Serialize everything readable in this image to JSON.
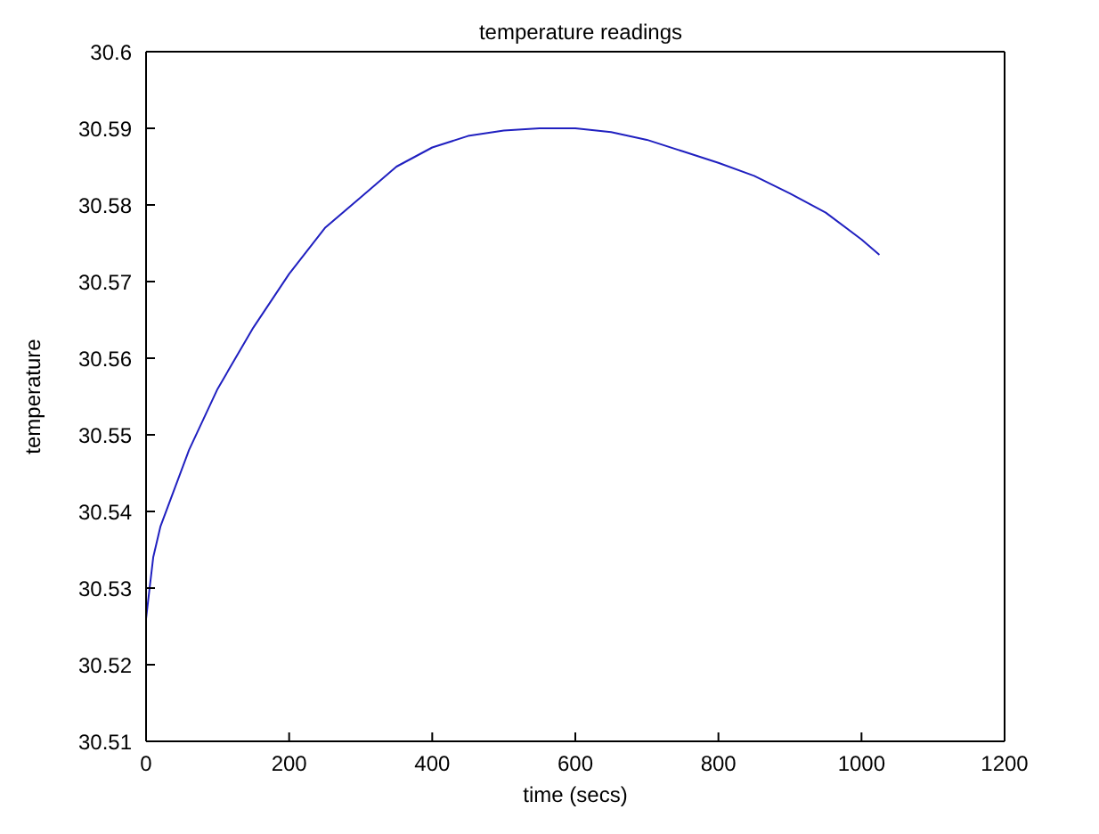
{
  "chart_data": {
    "type": "line",
    "title": "temperature readings",
    "xlabel": "time (secs)",
    "ylabel": "temperature",
    "x": [
      0,
      5,
      10,
      20,
      40,
      60,
      100,
      150,
      200,
      250,
      300,
      350,
      400,
      450,
      500,
      550,
      600,
      650,
      700,
      750,
      800,
      850,
      900,
      950,
      1000,
      1025
    ],
    "series": [
      {
        "color": "#2020c0",
        "values": [
          30.526,
          30.53,
          30.534,
          30.538,
          30.543,
          30.548,
          30.556,
          30.564,
          30.571,
          30.577,
          30.581,
          30.585,
          30.5875,
          30.589,
          30.5897,
          30.59,
          30.59,
          30.5895,
          30.5885,
          30.587,
          30.5855,
          30.5838,
          30.5815,
          30.579,
          30.5755,
          30.5735
        ]
      }
    ],
    "xlim": [
      0,
      1200
    ],
    "xticks": [
      0,
      200,
      400,
      600,
      800,
      1000,
      1200
    ],
    "ylim": [
      30.51,
      30.6
    ],
    "yticks": [
      30.51,
      30.52,
      30.53,
      30.54,
      30.55,
      30.56,
      30.57,
      30.58,
      30.59,
      30.6
    ],
    "grid": false,
    "legend": false,
    "marker": "none",
    "line_style": "solid"
  }
}
